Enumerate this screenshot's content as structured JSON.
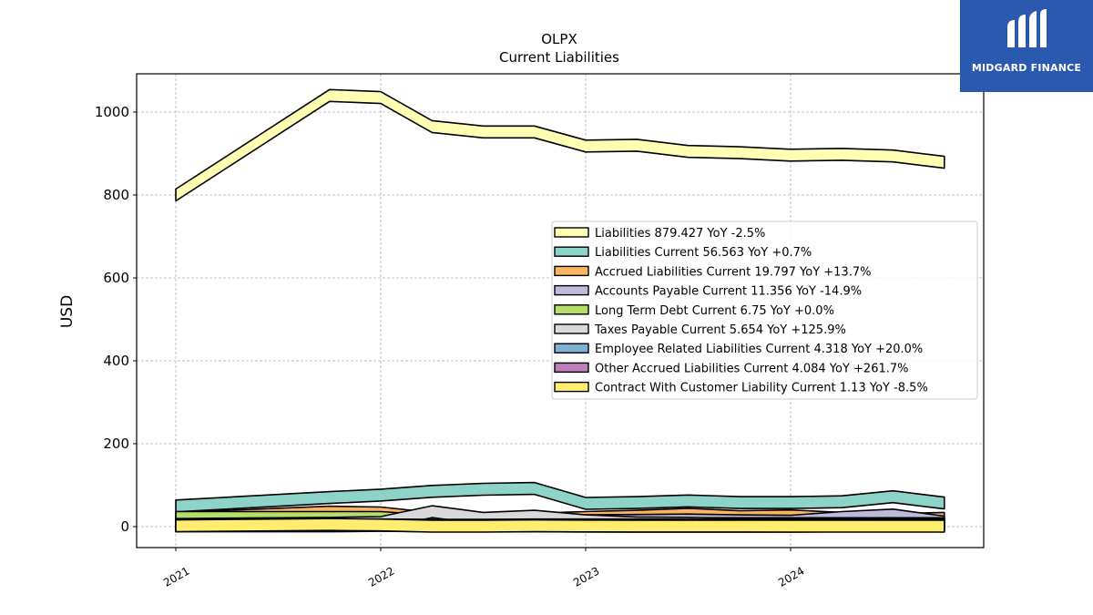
{
  "brand": {
    "name": "MIDGARD FINANCE",
    "bg_color": "#2b59b0"
  },
  "chart_data": {
    "type": "area",
    "title": "OLPX",
    "subtitle": "Current  Liabilities",
    "ylabel": "USD",
    "xlabel": "",
    "ylim": [
      -50,
      1090
    ],
    "xlim": [
      2020.9,
      2025.05
    ],
    "yticks": [
      0,
      200,
      400,
      600,
      800,
      1000
    ],
    "xticks": [
      2021,
      2022,
      2023,
      2024
    ],
    "xtick_labels": [
      "2021",
      "2022",
      "2023",
      "2024"
    ],
    "grid": true,
    "legend_position": "center-right",
    "x": [
      2021.0,
      2021.75,
      2022.0,
      2022.25,
      2022.5,
      2022.75,
      2023.0,
      2023.25,
      2023.5,
      2023.75,
      2024.0,
      2024.25,
      2024.5,
      2024.75
    ],
    "series": [
      {
        "name": "Liabilities",
        "legend": "Liabilities  879.427 YoY -2.5%",
        "color": "#ffffb3",
        "values": [
          800,
          1040,
          1035,
          965,
          952,
          952,
          918,
          920,
          905,
          902,
          896,
          898,
          894,
          879
        ]
      },
      {
        "name": "Liabilities Current",
        "legend": "Liabilities Current  56.563 YoY +0.7%",
        "color": "#8dd3c7",
        "values": [
          50,
          70,
          76,
          85,
          90,
          92,
          56,
          58,
          62,
          58,
          58,
          60,
          72,
          57
        ]
      },
      {
        "name": "Accrued Liabilities Current",
        "legend": "Accrued Liabilities Current  19.797 YoY +13.7%",
        "color": "#fdb462",
        "values": [
          20,
          35,
          33,
          20,
          18,
          18,
          22,
          25,
          30,
          24,
          26,
          20,
          17,
          20
        ]
      },
      {
        "name": "Accounts Payable Current",
        "legend": "Accounts Payable Current  11.356 YoY -14.9%",
        "color": "#bebada",
        "values": [
          10,
          12,
          14,
          15,
          14,
          13,
          14,
          15,
          16,
          14,
          13,
          22,
          28,
          11
        ]
      },
      {
        "name": "Long Term Debt Current",
        "legend": "Long Term Debt Current  6.75 YoY +0.0%",
        "color": "#b3de69",
        "values": [
          22,
          22,
          22,
          14,
          14,
          10,
          7,
          7,
          7,
          7,
          7,
          7,
          7,
          7
        ]
      },
      {
        "name": "Taxes Payable Current",
        "legend": "Taxes Payable Current  5.654 YoY +125.9%",
        "color": "#d9d9d9",
        "values": [
          5,
          8,
          10,
          36,
          20,
          25,
          14,
          9,
          8,
          6,
          4,
          3,
          2.5,
          5.7
        ]
      },
      {
        "name": "Employee Related Liabilities Current",
        "legend": "Employee Related Liabilities Current  4.318 YoY +20.0%",
        "color": "#80b1d3",
        "values": [
          3,
          4,
          4,
          3,
          3,
          4,
          4,
          4,
          3.6,
          3.6,
          3.6,
          4,
          4,
          4.3
        ]
      },
      {
        "name": "Other Accrued Liabilities Current",
        "legend": "Other Accrued Liabilities Current  4.084 YoY +261.7%",
        "color": "#bc80bd",
        "values": [
          2,
          2,
          3,
          2,
          2,
          2,
          1.5,
          1.2,
          1.1,
          1.1,
          1.2,
          2,
          3,
          4.1
        ]
      },
      {
        "name": "Contract With Customer Liability Current",
        "legend": "Contract With Customer Liability Current  1.13 YoY -8.5%",
        "color": "#ffed6f",
        "values": [
          2,
          5,
          4,
          1,
          1,
          2,
          1.5,
          1.4,
          1.3,
          1.3,
          1.2,
          1.2,
          1.2,
          1.1
        ]
      }
    ]
  }
}
